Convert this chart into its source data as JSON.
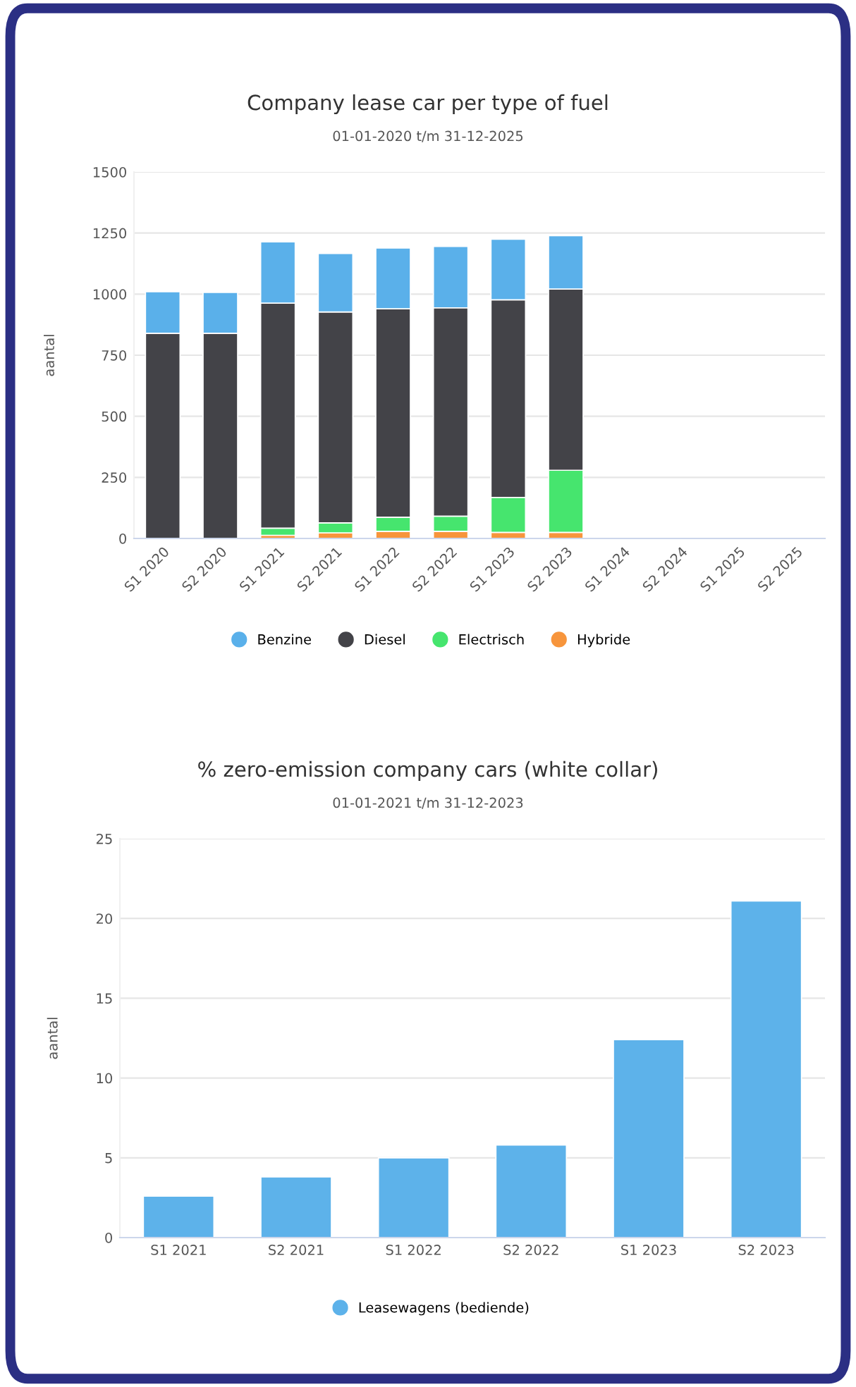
{
  "chart_data": [
    {
      "type": "bar",
      "title": "Company lease car per type of fuel",
      "subtitle": "01-01-2020 t/m 31-12-2025",
      "ylabel": "aantal",
      "stacked": true,
      "legend": "bottom",
      "grid": "y",
      "categories": [
        "S1 2020",
        "S2 2020",
        "S1 2021",
        "S2 2021",
        "S1 2022",
        "S2 2022",
        "S1 2023",
        "S2 2023",
        "S1 2024",
        "S2 2024",
        "S1 2025",
        "S2 2025"
      ],
      "series": [
        {
          "name": "Hybride",
          "color": "#f7953c",
          "values": [
            0,
            0,
            13,
            23,
            29,
            29,
            25,
            25,
            null,
            null,
            null,
            null
          ]
        },
        {
          "name": "Electrisch",
          "color": "#46e56e",
          "values": [
            0,
            0,
            29,
            41,
            58,
            62,
            143,
            254,
            null,
            null,
            null,
            null
          ]
        },
        {
          "name": "Diesel",
          "color": "#434348",
          "values": [
            840,
            840,
            921,
            863,
            853,
            853,
            809,
            742,
            null,
            null,
            null,
            null
          ]
        },
        {
          "name": "Benzine",
          "color": "#5ab0ea",
          "values": [
            170,
            167,
            251,
            239,
            249,
            251,
            248,
            218,
            null,
            null,
            null,
            null
          ]
        }
      ],
      "ylim": [
        0,
        1500
      ],
      "yticks": [
        0,
        250,
        500,
        750,
        1000,
        1250,
        1500
      ]
    },
    {
      "type": "bar",
      "title": "% zero-emission company cars (white collar)",
      "subtitle": "01-01-2021 t/m 31-12-2023",
      "ylabel": "aantal",
      "legend": "bottom",
      "grid": "y",
      "categories": [
        "S1 2021",
        "S2 2021",
        "S1 2022",
        "S2 2022",
        "S1 2023",
        "S2 2023"
      ],
      "series": [
        {
          "name": "Leasewagens (bediende)",
          "color": "#5db2ea",
          "values": [
            2.6,
            3.8,
            5.0,
            5.8,
            12.4,
            21.1
          ]
        }
      ],
      "ylim": [
        0,
        25
      ],
      "yticks": [
        0,
        5,
        10,
        15,
        20,
        25
      ]
    }
  ]
}
